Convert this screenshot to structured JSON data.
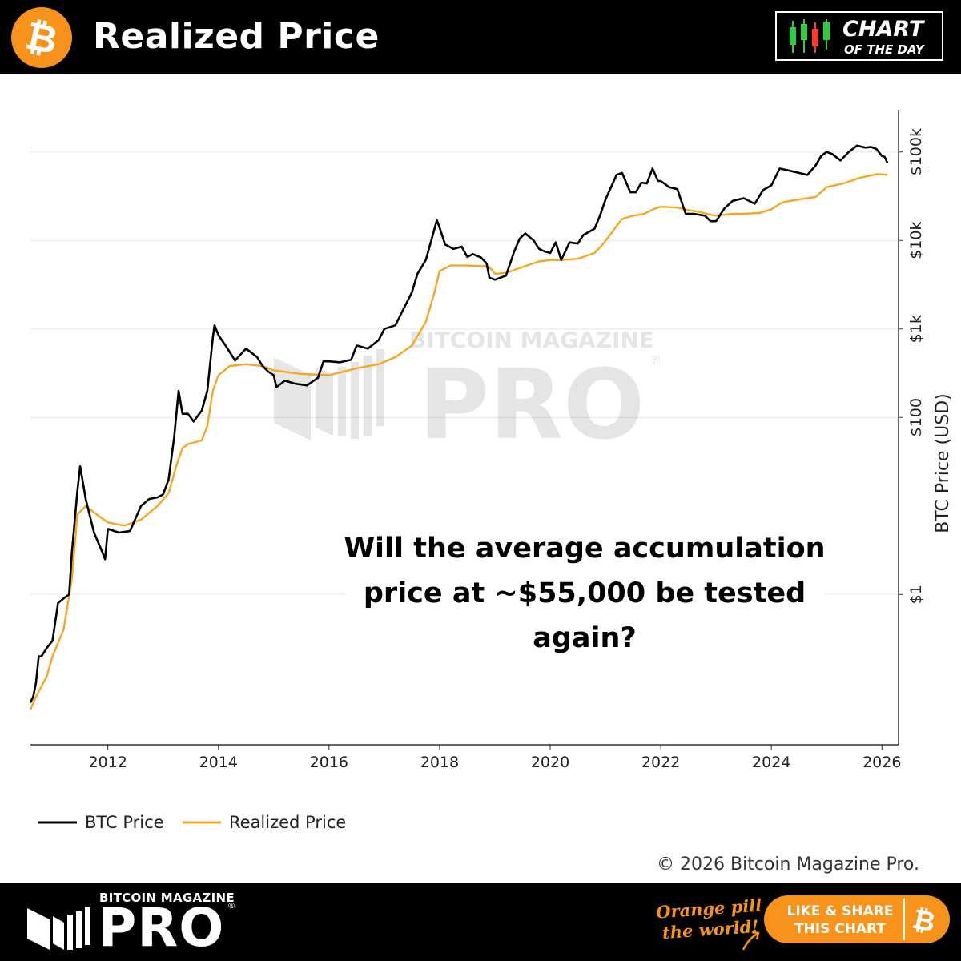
{
  "header": {
    "title": "Realized Price",
    "badge_line1": "CHART",
    "badge_line2": "OF THE DAY",
    "btc_symbol": "₿"
  },
  "chart": {
    "question": [
      "Will the average accumulation",
      "price at ~$55,000 be tested",
      "again?"
    ],
    "watermark_top": "BITCOIN MAGAZINE",
    "watermark_main": "PRO",
    "watermark_reg": "®",
    "copyright": "© 2026 Bitcoin Magazine Pro."
  },
  "footer": {
    "brand_top": "BITCOIN MAGAZINE",
    "brand_main": "PRO",
    "brand_reg": "®",
    "slogan_line1": "Orange pill",
    "slogan_line2": "the world!",
    "share_line1": "LIKE & SHARE",
    "share_line2": "THIS CHART",
    "share_btc": "₿"
  },
  "colors": {
    "btc_orange": "#f7931a",
    "realized_orange": "#f5a623",
    "price_black": "#000000",
    "grid": "#e6e6e6"
  },
  "chart_data": {
    "type": "line",
    "title": "Realized Price",
    "xlabel": "",
    "ylabel": "BTC Price (USD)",
    "yscale": "log",
    "xlim": [
      2010.6,
      2026.3
    ],
    "ylim": [
      0.02,
      300000
    ],
    "xticks": [
      2012,
      2014,
      2016,
      2018,
      2020,
      2022,
      2024,
      2026
    ],
    "xtick_labels": [
      "2012",
      "2014",
      "2016",
      "2018",
      "2020",
      "2022",
      "2024",
      "2026"
    ],
    "yticks": [
      1,
      100,
      1000,
      10000,
      100000
    ],
    "ytick_labels": [
      "$1",
      "$100",
      "$1k",
      "$10k",
      "$100k"
    ],
    "legend_position": "bottom-left",
    "series": [
      {
        "name": "BTC Price",
        "color": "#000000",
        "x": [
          2010.6,
          2010.65,
          2010.7,
          2010.75,
          2010.8,
          2010.9,
          2011.0,
          2011.1,
          2011.2,
          2011.3,
          2011.35,
          2011.45,
          2011.5,
          2011.6,
          2011.75,
          2011.9,
          2011.95,
          2012.0,
          2012.2,
          2012.4,
          2012.6,
          2012.75,
          2012.9,
          2013.0,
          2013.1,
          2013.2,
          2013.28,
          2013.35,
          2013.45,
          2013.55,
          2013.7,
          2013.8,
          2013.9,
          2013.93,
          2014.0,
          2014.15,
          2014.3,
          2014.5,
          2014.7,
          2014.8,
          2014.9,
          2015.0,
          2015.05,
          2015.2,
          2015.4,
          2015.6,
          2015.8,
          2015.9,
          2016.0,
          2016.2,
          2016.4,
          2016.5,
          2016.7,
          2016.9,
          2017.0,
          2017.2,
          2017.35,
          2017.5,
          2017.6,
          2017.75,
          2017.85,
          2017.95,
          2018.0,
          2018.1,
          2018.25,
          2018.4,
          2018.5,
          2018.6,
          2018.75,
          2018.85,
          2018.9,
          2019.0,
          2019.2,
          2019.35,
          2019.45,
          2019.55,
          2019.7,
          2019.8,
          2019.9,
          2020.0,
          2020.1,
          2020.2,
          2020.35,
          2020.5,
          2020.6,
          2020.8,
          2020.9,
          2021.0,
          2021.1,
          2021.2,
          2021.3,
          2021.45,
          2021.55,
          2021.65,
          2021.75,
          2021.85,
          2021.95,
          2022.0,
          2022.15,
          2022.3,
          2022.45,
          2022.6,
          2022.8,
          2022.9,
          2023.0,
          2023.15,
          2023.3,
          2023.5,
          2023.7,
          2023.85,
          2024.0,
          2024.15,
          2024.3,
          2024.5,
          2024.65,
          2024.8,
          2024.9,
          2025.0,
          2025.1,
          2025.25,
          2025.4,
          2025.55,
          2025.7,
          2025.8,
          2025.9,
          2026.0,
          2026.05,
          2026.1
        ],
        "values": [
          0.06,
          0.07,
          0.1,
          0.2,
          0.2,
          0.25,
          0.3,
          0.8,
          0.9,
          1.0,
          3.0,
          15.0,
          28.0,
          12.0,
          5.0,
          3.0,
          2.5,
          5.5,
          5.0,
          5.2,
          10.0,
          12.0,
          12.5,
          13.5,
          20.0,
          60.0,
          200.0,
          110.0,
          110.0,
          90.0,
          120.0,
          200.0,
          800.0,
          1100.0,
          850.0,
          620.0,
          440.0,
          600.0,
          480.0,
          380.0,
          330.0,
          300.0,
          220.0,
          260.0,
          240.0,
          230.0,
          280.0,
          430.0,
          430.0,
          420.0,
          450.0,
          650.0,
          600.0,
          750.0,
          1000.0,
          1100.0,
          1700.0,
          2600.0,
          4200.0,
          6000.0,
          10000.0,
          17000.0,
          14000.0,
          9000.0,
          8000.0,
          8500.0,
          6500.0,
          7000.0,
          6400.0,
          5500.0,
          3800.0,
          3600.0,
          4000.0,
          7500.0,
          10500.0,
          12000.0,
          10000.0,
          8000.0,
          7500.0,
          7200.0,
          9500.0,
          6000.0,
          9500.0,
          9200.0,
          11500.0,
          13500.0,
          19000.0,
          29000.0,
          40000.0,
          55000.0,
          58000.0,
          35000.0,
          35000.0,
          45000.0,
          44000.0,
          65000.0,
          47000.0,
          47000.0,
          40000.0,
          38000.0,
          20000.0,
          20000.0,
          19000.0,
          16500.0,
          16500.0,
          23000.0,
          28000.0,
          30000.0,
          26000.0,
          37000.0,
          42000.0,
          65000.0,
          62000.0,
          58000.0,
          55000.0,
          70000.0,
          90000.0,
          100000.0,
          95000.0,
          80000.0,
          100000.0,
          118000.0,
          112000.0,
          114000.0,
          108000.0,
          90000.0,
          88000.0,
          75000.0
        ]
      },
      {
        "name": "Realized Price",
        "color": "#f5a623",
        "x": [
          2010.6,
          2010.7,
          2010.9,
          2011.0,
          2011.2,
          2011.35,
          2011.45,
          2011.6,
          2011.8,
          2012.0,
          2012.3,
          2012.6,
          2012.9,
          2013.1,
          2013.25,
          2013.35,
          2013.45,
          2013.7,
          2013.8,
          2013.9,
          2014.0,
          2014.2,
          2014.5,
          2014.8,
          2015.0,
          2015.5,
          2016.0,
          2016.5,
          2016.9,
          2017.2,
          2017.5,
          2017.75,
          2017.9,
          2018.0,
          2018.2,
          2018.5,
          2018.8,
          2018.9,
          2019.0,
          2019.2,
          2019.5,
          2019.8,
          2020.0,
          2020.2,
          2020.5,
          2020.8,
          2020.95,
          2021.1,
          2021.3,
          2021.5,
          2021.7,
          2021.9,
          2022.0,
          2022.3,
          2022.5,
          2022.7,
          2022.9,
          2023.0,
          2023.3,
          2023.5,
          2023.8,
          2024.0,
          2024.2,
          2024.5,
          2024.8,
          2024.9,
          2025.0,
          2025.3,
          2025.6,
          2025.9,
          2026.0,
          2026.1
        ],
        "values": [
          0.05,
          0.07,
          0.12,
          0.2,
          0.4,
          1.5,
          8.0,
          10.0,
          8.0,
          6.5,
          6.0,
          7.0,
          10.0,
          14.0,
          30.0,
          45.0,
          50.0,
          55.0,
          80.0,
          200.0,
          300.0,
          380.0,
          400.0,
          380.0,
          340.0,
          310.0,
          300.0,
          360.0,
          400.0,
          480.0,
          650.0,
          1200.0,
          2500.0,
          4500.0,
          5200.0,
          5200.0,
          5100.0,
          5000.0,
          4200.0,
          4300.0,
          5000.0,
          5800.0,
          6000.0,
          6000.0,
          6200.0,
          7200.0,
          9000.0,
          12000.0,
          17500.0,
          19000.0,
          20000.0,
          23000.0,
          24000.0,
          23500.0,
          22000.0,
          21000.0,
          19500.0,
          19000.0,
          20000.0,
          20000.0,
          20500.0,
          22500.0,
          27000.0,
          29000.0,
          31000.0,
          35000.0,
          40000.0,
          44000.0,
          51000.0,
          56000.0,
          56000.0,
          55000.0
        ]
      }
    ]
  }
}
